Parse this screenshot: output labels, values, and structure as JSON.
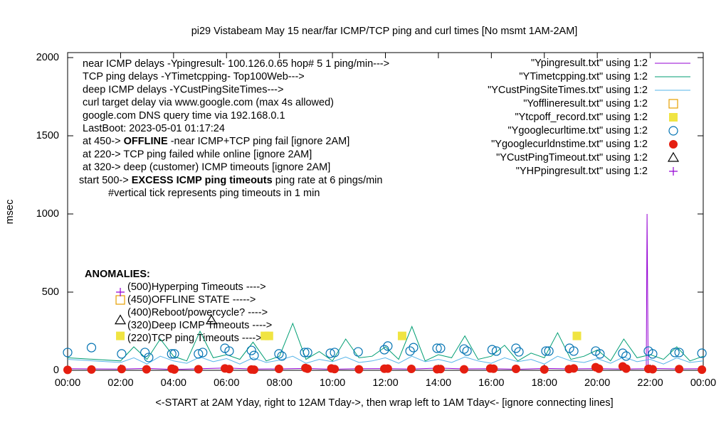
{
  "chart_data": {
    "type": "line",
    "title": "pi29 Vistabeam May 15  near/far ICMP/TCP ping and curl times [No msmt 1AM-2AM]",
    "y_label": "msec",
    "x_label": "<-START at 2AM Yday, right to 12AM Tday->, then wrap left to 1AM Tday<- [ignore connecting lines]",
    "xlim": [
      0,
      24
    ],
    "ylim": [
      0,
      2032
    ],
    "xticks": [
      {
        "value": 0,
        "label": "00:00"
      },
      {
        "value": 2,
        "label": "02:00"
      },
      {
        "value": 4,
        "label": "04:00"
      },
      {
        "value": 6,
        "label": "06:00"
      },
      {
        "value": 8,
        "label": "08:00"
      },
      {
        "value": 10,
        "label": "10:00"
      },
      {
        "value": 12,
        "label": "12:00"
      },
      {
        "value": 14,
        "label": "14:00"
      },
      {
        "value": 16,
        "label": "16:00"
      },
      {
        "value": 18,
        "label": "18:00"
      },
      {
        "value": 20,
        "label": "20:00"
      },
      {
        "value": 22,
        "label": "22:00"
      },
      {
        "value": 24,
        "label": "00:00"
      }
    ],
    "yticks": [
      0,
      500,
      1000,
      1500,
      2000
    ],
    "grid": false,
    "legend_position": "top-right",
    "notes": [
      [
        {
          "text": "near ICMP delays -Ypingresult- 100.126.0.65 hop# 5 1 ping/min--->"
        }
      ],
      [
        {
          "text": "TCP ping delays -YTimetcpping- Top100Web--->"
        }
      ],
      [
        {
          "text": "deep ICMP delays -YCustPingSiteTimes--->"
        }
      ],
      [
        {
          "text": "curl target delay via www.google.com (max 4s allowed)"
        }
      ],
      [
        {
          "text": "google.com DNS query time via 192.168.0.1"
        }
      ],
      [
        {
          "text": "LastBoot: 2023-05-01 01:17:24"
        }
      ],
      [
        {
          "text": "at 450-> "
        },
        {
          "text": "OFFLINE",
          "bold": true
        },
        {
          "text": " -near ICMP+TCP ping fail [ignore 2AM]"
        }
      ],
      [
        {
          "text": "at 220-> TCP ping failed while online [ignore 2AM]"
        }
      ],
      [
        {
          "text": "at 320-> deep (customer) ICMP timeouts [ignore 2AM]"
        }
      ],
      [
        {
          "text": "start 500-> "
        },
        {
          "text": "EXCESS ICMP ping timeouts",
          "bold": true
        },
        {
          "text": " ping rate at 6 pings/min"
        }
      ],
      [
        {
          "text": "#vertical tick represents ping timeouts in 1 min"
        }
      ]
    ],
    "anomalies_title": "ANOMALIES:",
    "anomalies": [
      "(500)Hyperping Timeouts ---->",
      "(450)OFFLINE STATE ----->",
      "(400)Reboot/powercycle? ---->",
      "(320)Deep ICMP Timeouts ---->",
      "(220)TCP ping Timeouts ---->"
    ],
    "series": [
      {
        "name": "\"Ypingresult.txt\" using 1:2",
        "color": "#9400d3",
        "style": "line",
        "x": [
          0,
          2,
          3,
          4,
          5,
          6,
          7,
          8,
          9,
          10,
          11,
          12,
          13,
          14,
          15,
          16,
          17,
          18,
          19,
          20,
          21,
          21.85,
          21.88,
          21.9,
          21.92,
          22,
          23,
          24
        ],
        "values": [
          10,
          8,
          12,
          6,
          10,
          15,
          8,
          9,
          12,
          7,
          10,
          11,
          8,
          14,
          9,
          10,
          7,
          12,
          9,
          11,
          8,
          10,
          1000,
          500,
          10,
          12,
          9,
          10
        ]
      },
      {
        "name": "\"YTimetcpping.txt\" using 1:2",
        "color": "#009e73",
        "style": "line",
        "x": [
          0,
          2,
          2.5,
          3,
          3.5,
          4,
          4.5,
          5,
          5.5,
          6,
          6.5,
          7,
          7.5,
          8,
          8.5,
          9,
          9.5,
          10,
          10.5,
          11,
          11.5,
          12,
          12.5,
          13,
          13.5,
          14,
          14.5,
          15,
          15.5,
          16,
          16.5,
          17,
          17.5,
          18,
          18.5,
          19,
          19.5,
          20,
          20.5,
          21,
          21.5,
          22,
          22.5,
          23,
          23.5,
          24
        ],
        "values": [
          80,
          60,
          150,
          70,
          200,
          90,
          60,
          250,
          80,
          100,
          70,
          180,
          60,
          90,
          300,
          70,
          120,
          60,
          200,
          80,
          90,
          150,
          70,
          280,
          60,
          100,
          80,
          220,
          70,
          90,
          160,
          60,
          110,
          80,
          240,
          70,
          90,
          130,
          60,
          200,
          80,
          100,
          70,
          150,
          60,
          90
        ]
      },
      {
        "name": "\"YCustPingSiteTimes.txt\" using 1:2",
        "color": "#56b4e9",
        "style": "line",
        "x": [
          0,
          2,
          2.5,
          3,
          3.5,
          4,
          4.5,
          5,
          5.5,
          6,
          6.5,
          7,
          7.5,
          8,
          8.5,
          9,
          9.5,
          10,
          10.5,
          11,
          11.5,
          12,
          12.5,
          13,
          13.5,
          14,
          14.5,
          15,
          15.5,
          16,
          16.5,
          17,
          17.5,
          18,
          18.5,
          19,
          19.5,
          20,
          20.5,
          21,
          21.5,
          22,
          22.5,
          23,
          23.5,
          24
        ],
        "values": [
          70,
          50,
          80,
          40,
          90,
          60,
          45,
          85,
          55,
          75,
          40,
          80,
          50,
          65,
          90,
          45,
          70,
          55,
          85,
          50,
          60,
          80,
          45,
          90,
          55,
          70,
          50,
          85,
          60,
          45,
          80,
          55,
          70,
          40,
          90,
          60,
          50,
          75,
          45,
          85,
          55,
          70,
          40,
          80,
          50,
          60
        ]
      },
      {
        "name": "\"Yofflineresult.txt\" using 1:2",
        "color": "#e69f00",
        "style": "square",
        "x": [
          1.99
        ],
        "values": [
          450
        ]
      },
      {
        "name": "\"Ytcpoff_record.txt\" using 1:2",
        "color": "#f0e442",
        "style": "square-filled",
        "x": [
          1.99,
          7.45,
          7.6,
          12.63,
          19.23
        ],
        "values": [
          220,
          220,
          220,
          220,
          220
        ]
      },
      {
        "name": "\"Ygooglecurltime.txt\" using 1:2",
        "color": "#0072b2",
        "style": "circle",
        "x": [
          0.0,
          0.9,
          2.04,
          2.92,
          3.06,
          3.93,
          4.03,
          4.94,
          5.1,
          5.94,
          6.1,
          6.94,
          7.04,
          7.98,
          8.09,
          8.95,
          9.06,
          9.92,
          10.08,
          10.97,
          11.96,
          12.09,
          12.93,
          13.06,
          13.95,
          14.08,
          14.97,
          15.08,
          16.03,
          16.19,
          16.93,
          17.04,
          18.06,
          18.17,
          18.95,
          19.11,
          19.94,
          20.1,
          20.96,
          21.09,
          21.93,
          22.09,
          22.93,
          23.09,
          23.95
        ],
        "values": [
          114,
          145,
          105,
          114,
          82,
          105,
          105,
          105,
          114,
          141,
          123,
          127,
          95,
          105,
          91,
          114,
          114,
          109,
          114,
          118,
          132,
          155,
          123,
          145,
          141,
          141,
          136,
          123,
          132,
          123,
          141,
          118,
          123,
          123,
          141,
          123,
          123,
          105,
          109,
          91,
          123,
          105,
          114,
          114,
          109
        ]
      },
      {
        "name": "\"Ygooglecurldnstime.txt\" using 1:2",
        "color": "#e51e10",
        "style": "circle-filled",
        "x": [
          0.0,
          0.9,
          2.04,
          2.98,
          3.93,
          4.03,
          4.94,
          5.94,
          6.1,
          6.94,
          7.04,
          7.98,
          8.98,
          9.06,
          9.96,
          10.08,
          11.0,
          11.96,
          12.09,
          12.98,
          13.95,
          14.08,
          14.97,
          15.96,
          16.08,
          16.93,
          18.0,
          18.93,
          19.11,
          19.94,
          20.06,
          20.96,
          21.09,
          21.93,
          22.09,
          23.09,
          23.95
        ],
        "values": [
          3,
          5,
          8,
          6,
          10,
          5,
          7,
          12,
          8,
          5,
          4,
          9,
          15,
          10,
          12,
          8,
          6,
          10,
          11,
          9,
          7,
          8,
          6,
          12,
          10,
          9,
          5,
          8,
          12,
          20,
          10,
          25,
          11,
          9,
          7,
          8,
          4
        ]
      },
      {
        "name": "\"YCustPingTimeout.txt\" using 1:2",
        "color": "#000000",
        "style": "triangle",
        "x": [
          1.99,
          5.43
        ],
        "values": [
          320,
          320
        ]
      },
      {
        "name": "\"YHPpingresult.txt\" using 1:2",
        "color": "#9400d3",
        "style": "plus",
        "x": [
          1.99
        ],
        "values": [
          500
        ]
      }
    ]
  }
}
